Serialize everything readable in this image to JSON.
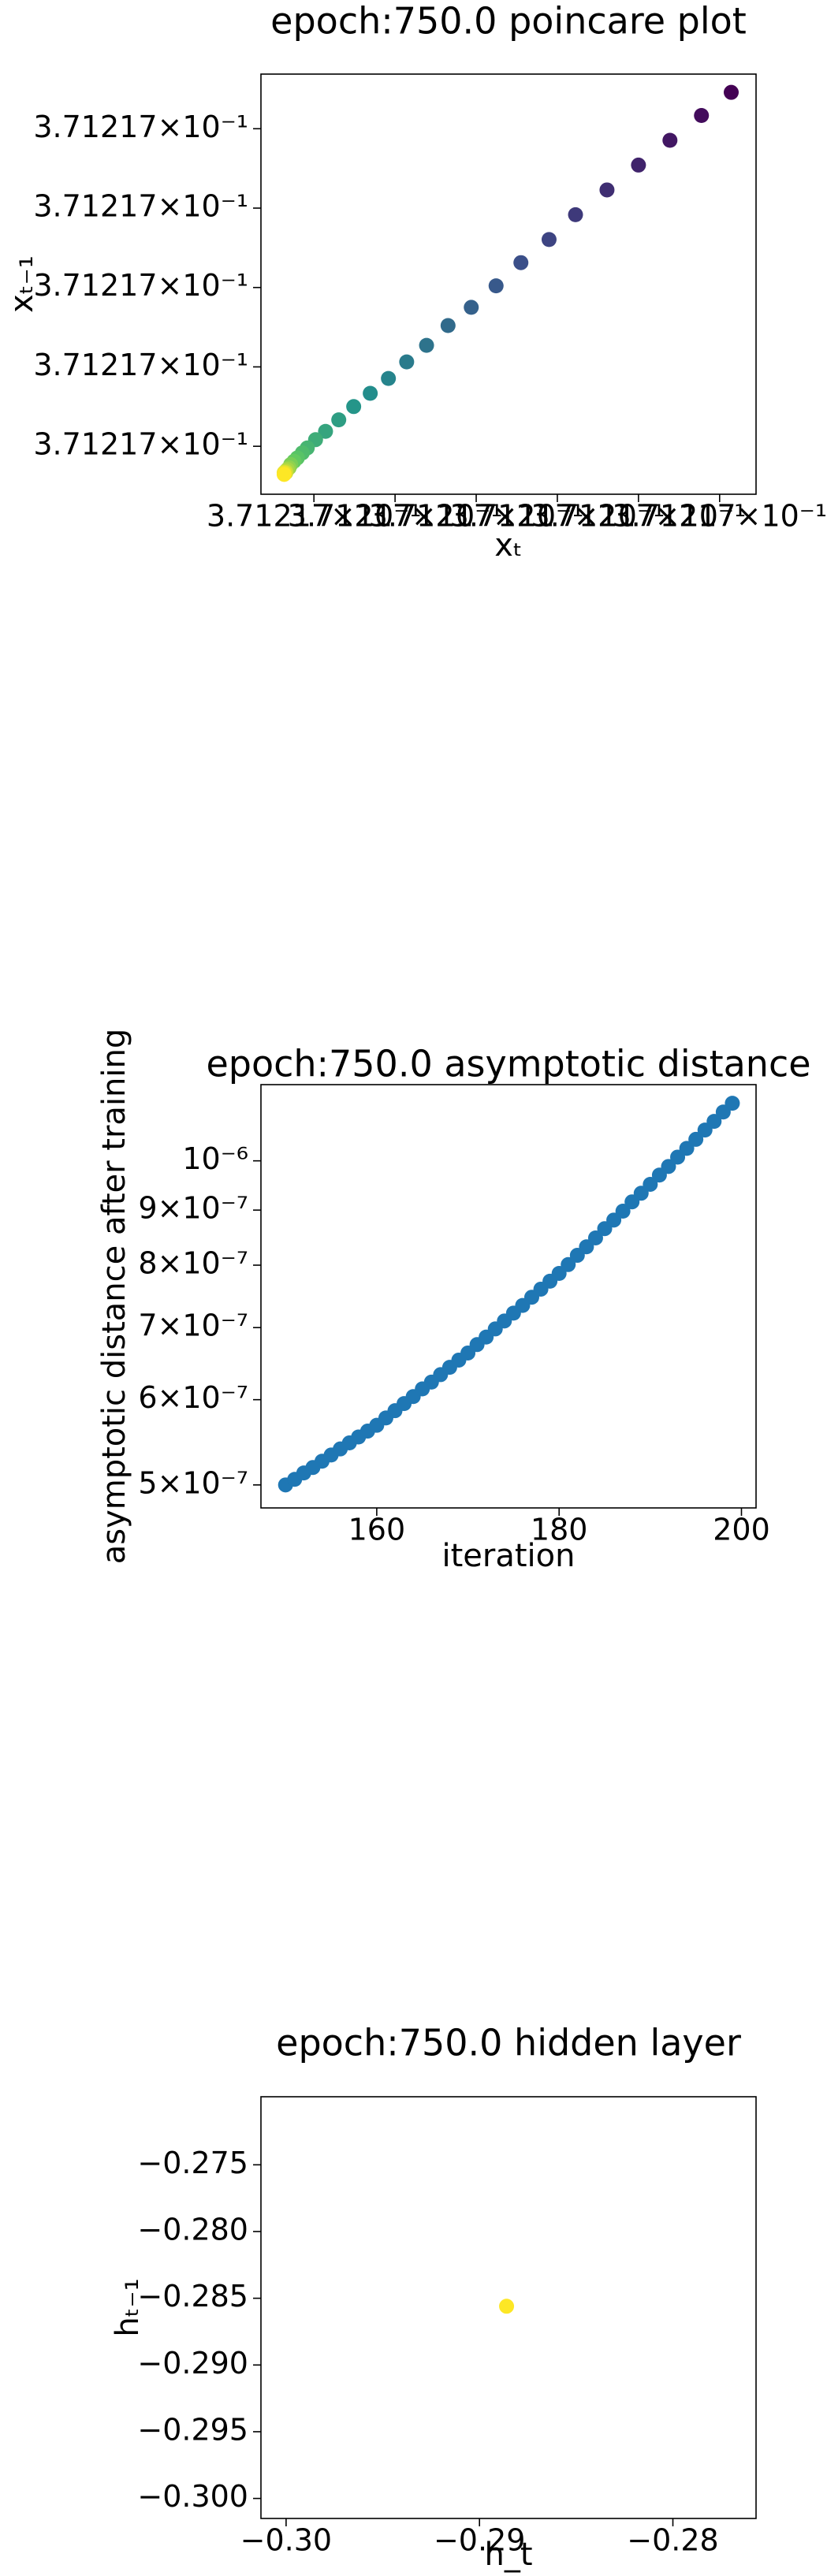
{
  "chart_data": [
    {
      "type": "scatter",
      "title": "epoch:750.0 poincare plot",
      "xlabel": "xₜ",
      "ylabel": "xₜ₋₁",
      "colormap": "viridis",
      "grid": false,
      "x": [
        0.37121705143,
        0.37121704776,
        0.37121704388,
        0.37121704,
        0.37121703612,
        0.37121703224,
        0.37121702898,
        0.37121702551,
        0.37121702245,
        0.37121701939,
        0.37121701653,
        0.37121701388,
        0.37121701143,
        0.37121700918,
        0.37121700694,
        0.3712170049,
        0.37121700306,
        0.37121700143,
        0.3712170002,
        0.37121699918,
        0.37121699857,
        0.37121699796,
        0.37121699755,
        0.37121699714,
        0.37121699694,
        0.37121699673,
        0.37121699653,
        0.37121699653,
        0.37121699633,
        0.37121699633
      ],
      "values": [
        0.37121704458,
        0.37121704167,
        0.37121703854,
        0.37121703542,
        0.37121703229,
        0.37121702917,
        0.37121702604,
        0.37121702313,
        0.37121702021,
        0.3712170175,
        0.37121701521,
        0.37121701271,
        0.37121701063,
        0.37121700854,
        0.37121700667,
        0.371217005,
        0.37121700333,
        0.37121700188,
        0.37121700083,
        0.37121699979,
        0.37121699917,
        0.37121699854,
        0.37121699812,
        0.37121699771,
        0.37121699729,
        0.37121699708,
        0.37121699687,
        0.37121699667,
        0.37121699667,
        0.37121699646
      ],
      "xlim": [
        0.37121699347,
        0.37121705449
      ],
      "ylim": [
        0.37121699396,
        0.37121704688
      ],
      "xticks": [
        {
          "value": 0.371217,
          "label": "3.71217×10⁻¹"
        },
        {
          "value": 0.37121701,
          "label": "3.71217×10⁻¹"
        },
        {
          "value": 0.37121702,
          "label": "3.71217×10⁻¹"
        },
        {
          "value": 0.37121703,
          "label": "3.71217×10⁻¹"
        },
        {
          "value": 0.37121704,
          "label": "3.71217×10⁻¹"
        },
        {
          "value": 0.37121705,
          "label": "3.71217×10⁻¹"
        }
      ],
      "yticks": [
        {
          "value": 0.371217,
          "label": "3.71217×10⁻¹"
        },
        {
          "value": 0.37121701,
          "label": "3.71217×10⁻¹"
        },
        {
          "value": 0.37121702,
          "label": "3.71217×10⁻¹"
        },
        {
          "value": 0.37121703,
          "label": "3.71217×10⁻¹"
        },
        {
          "value": 0.37121704,
          "label": "3.71217×10⁻¹"
        }
      ]
    },
    {
      "type": "scatter",
      "title": "epoch:750.0 asymptotic distance",
      "xlabel": "iteration",
      "ylabel": "asymptotic distance after training",
      "color": "#1f77b4",
      "yscale": "log",
      "grid": false,
      "x": [
        150,
        151,
        152,
        153,
        154,
        155,
        156,
        157,
        158,
        159,
        160,
        161,
        162,
        163,
        164,
        165,
        166,
        167,
        168,
        169,
        170,
        171,
        172,
        173,
        174,
        175,
        176,
        177,
        178,
        179,
        180,
        181,
        182,
        183,
        184,
        185,
        186,
        187,
        188,
        189,
        190,
        191,
        192,
        193,
        194,
        195,
        196,
        197,
        198,
        199
      ],
      "values": [
        5e-07,
        5.06e-07,
        5.13e-07,
        5.19e-07,
        5.26e-07,
        5.33e-07,
        5.4e-07,
        5.47e-07,
        5.54e-07,
        5.61e-07,
        5.68e-07,
        5.77e-07,
        5.86e-07,
        5.95e-07,
        6.04e-07,
        6.14e-07,
        6.23e-07,
        6.33e-07,
        6.43e-07,
        6.53e-07,
        6.63e-07,
        6.75e-07,
        6.86e-07,
        6.98e-07,
        7.1e-07,
        7.22e-07,
        7.34e-07,
        7.47e-07,
        7.6e-07,
        7.73e-07,
        7.86e-07,
        8.01e-07,
        8.17e-07,
        8.32e-07,
        8.48e-07,
        8.65e-07,
        8.81e-07,
        8.98e-07,
        9.16e-07,
        9.33e-07,
        9.51e-07,
        9.7e-07,
        9.88e-07,
        1.008e-06,
        1.027e-06,
        1.047e-06,
        1.068e-06,
        1.088e-06,
        1.11e-06,
        1.131e-06
      ],
      "xlim": [
        147.3,
        201.6
      ],
      "ylim": [
        4.76e-07,
        1.177e-06
      ],
      "xticks": [
        160,
        180,
        200
      ],
      "yticks": [
        {
          "value": 1e-06,
          "label": "10⁻⁶"
        },
        {
          "value": 9e-07,
          "label": "9×10⁻⁷"
        },
        {
          "value": 8e-07,
          "label": "8×10⁻⁷"
        },
        {
          "value": 7e-07,
          "label": "7×10⁻⁷"
        },
        {
          "value": 6e-07,
          "label": "6×10⁻⁷"
        },
        {
          "value": 5e-07,
          "label": "5×10⁻⁷"
        }
      ]
    },
    {
      "type": "scatter",
      "title": "epoch:750.0 hidden layer",
      "xlabel": "h_t",
      "ylabel": "hₜ₋₁",
      "color": "#fde725",
      "grid": false,
      "x": [
        -0.2886
      ],
      "values": [
        -0.2856
      ],
      "xlim": [
        -0.3013,
        -0.2757
      ],
      "ylim": [
        -0.3015,
        -0.2699
      ],
      "xticks": [
        {
          "value": -0.3,
          "label": "−0.30"
        },
        {
          "value": -0.29,
          "label": "−0.29"
        },
        {
          "value": -0.28,
          "label": "−0.28"
        }
      ],
      "yticks": [
        {
          "value": -0.275,
          "label": "−0.275"
        },
        {
          "value": -0.28,
          "label": "−0.280"
        },
        {
          "value": -0.285,
          "label": "−0.285"
        },
        {
          "value": -0.29,
          "label": "−0.290"
        },
        {
          "value": -0.295,
          "label": "−0.295"
        },
        {
          "value": -0.3,
          "label": "−0.300"
        }
      ]
    }
  ]
}
